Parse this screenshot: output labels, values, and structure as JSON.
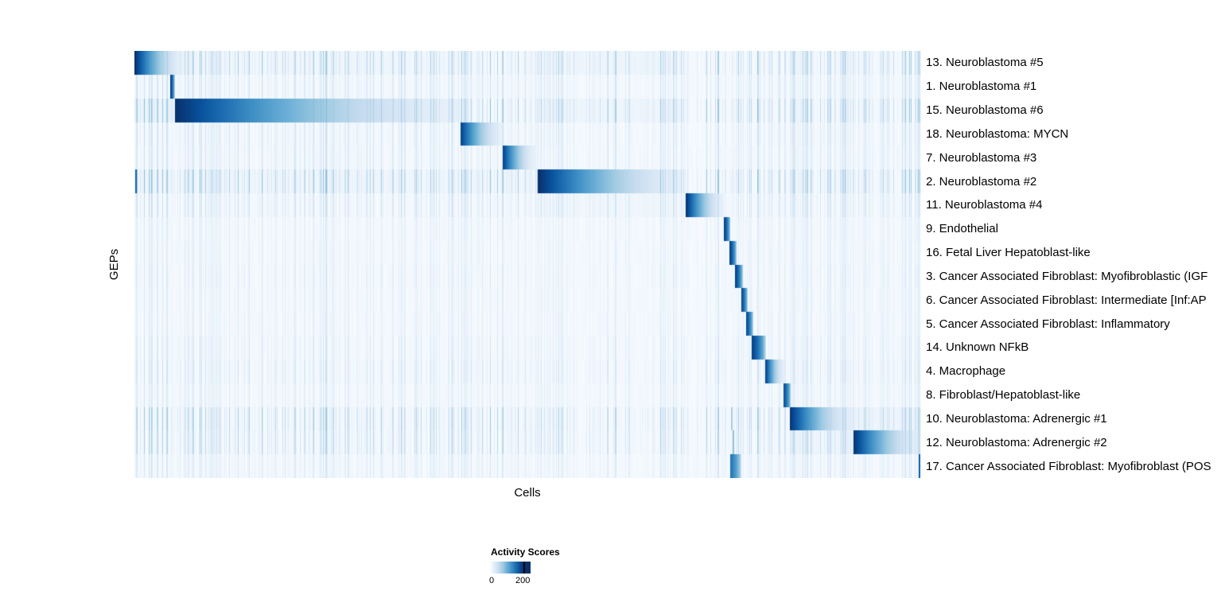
{
  "chart_data": {
    "type": "heatmap",
    "title": "",
    "xlabel": "Cells",
    "ylabel": "GEPs",
    "grid": false,
    "legend_position": "bottom",
    "colorbar": {
      "title": "Activity Scores",
      "min": 0,
      "max": 200,
      "min_label": "0",
      "max_label": "200",
      "colormap": [
        "#f7fbff",
        "#deebf7",
        "#c6dbef",
        "#9ecae1",
        "#6baed6",
        "#4292c6",
        "#2171b5",
        "#08519c",
        "#08306b"
      ]
    },
    "rows": [
      {
        "label": "13. Neuroblastoma #5",
        "block": [
          0.0,
          0.062
        ],
        "peak": 200,
        "noise": 0.9,
        "bands": [
          [
            0.062,
            0.42,
            0.07
          ],
          [
            0.513,
            0.701,
            0.09
          ]
        ]
      },
      {
        "label": "1. Neuroblastoma #1",
        "block": [
          0.045,
          0.051
        ],
        "peak": 200,
        "noise": 0.5
      },
      {
        "label": "15. Neuroblastoma #6",
        "block": [
          0.051,
          0.416
        ],
        "peak": 200,
        "noise": 1.0,
        "bands": [
          [
            0.0,
            0.051,
            0.12
          ],
          [
            0.513,
            0.701,
            0.09
          ]
        ]
      },
      {
        "label": "18. Neuroblastoma: MYCN",
        "block": [
          0.414,
          0.468
        ],
        "peak": 190,
        "noise": 0.5
      },
      {
        "label": "7. Neuroblastoma #3",
        "block": [
          0.468,
          0.51
        ],
        "peak": 190,
        "noise": 0.45
      },
      {
        "label": "2. Neuroblastoma #2",
        "block": [
          0.513,
          0.701
        ],
        "peak": 200,
        "noise": 1.0,
        "bands": [
          [
            0.0,
            0.513,
            0.08
          ]
        ],
        "spikes": [
          [
            0.0015,
            0.8
          ]
        ]
      },
      {
        "label": "11. Neuroblastoma #4",
        "block": [
          0.701,
          0.749
        ],
        "peak": 200,
        "noise": 0.55,
        "bands": [
          [
            0.513,
            0.701,
            0.07
          ]
        ]
      },
      {
        "label": "9. Endothelial",
        "block": [
          0.75,
          0.758
        ],
        "peak": 190,
        "noise": 0.3
      },
      {
        "label": "16. Fetal Liver Hepatoblast-like",
        "block": [
          0.757,
          0.766
        ],
        "peak": 190,
        "noise": 0.3
      },
      {
        "label": "3. Cancer Associated Fibroblast: Myofibroblastic (IGF",
        "block": [
          0.764,
          0.774
        ],
        "peak": 190,
        "noise": 0.35
      },
      {
        "label": "6. Cancer Associated Fibroblast: Intermediate [Inf:AP",
        "block": [
          0.772,
          0.78
        ],
        "peak": 185,
        "noise": 0.3
      },
      {
        "label": "5. Cancer Associated Fibroblast: Inflammatory",
        "block": [
          0.778,
          0.787
        ],
        "peak": 185,
        "noise": 0.3
      },
      {
        "label": "14. Unknown NFkB",
        "block": [
          0.785,
          0.803
        ],
        "peak": 190,
        "noise": 0.4
      },
      {
        "label": "4. Macrophage",
        "block": [
          0.802,
          0.827
        ],
        "peak": 195,
        "noise": 0.5
      },
      {
        "label": "8. Fibroblast/Hepatoblast-like",
        "block": [
          0.825,
          0.835
        ],
        "peak": 185,
        "noise": 0.35
      },
      {
        "label": "10. Neuroblastoma: Adrenergic #1",
        "block": [
          0.833,
          0.914
        ],
        "peak": 200,
        "noise": 0.9,
        "bands": [
          [
            0.914,
            1.0,
            0.1
          ]
        ],
        "spikes": [
          [
            0.7595,
            0.35
          ]
        ]
      },
      {
        "label": "12. Neuroblastoma: Adrenergic #2",
        "block": [
          0.914,
          1.0
        ],
        "peak": 200,
        "noise": 0.8,
        "bands": [
          [
            0.833,
            0.914,
            0.09
          ]
        ],
        "spikes": [
          [
            0.7615,
            0.4
          ]
        ]
      },
      {
        "label": "17. Cancer Associated Fibroblast: Myofibroblast (POS",
        "block": [
          0.758,
          0.772
        ],
        "peak": 150,
        "noise": 0.4,
        "spikes": [
          [
            0.9985,
            0.8
          ]
        ]
      }
    ]
  }
}
